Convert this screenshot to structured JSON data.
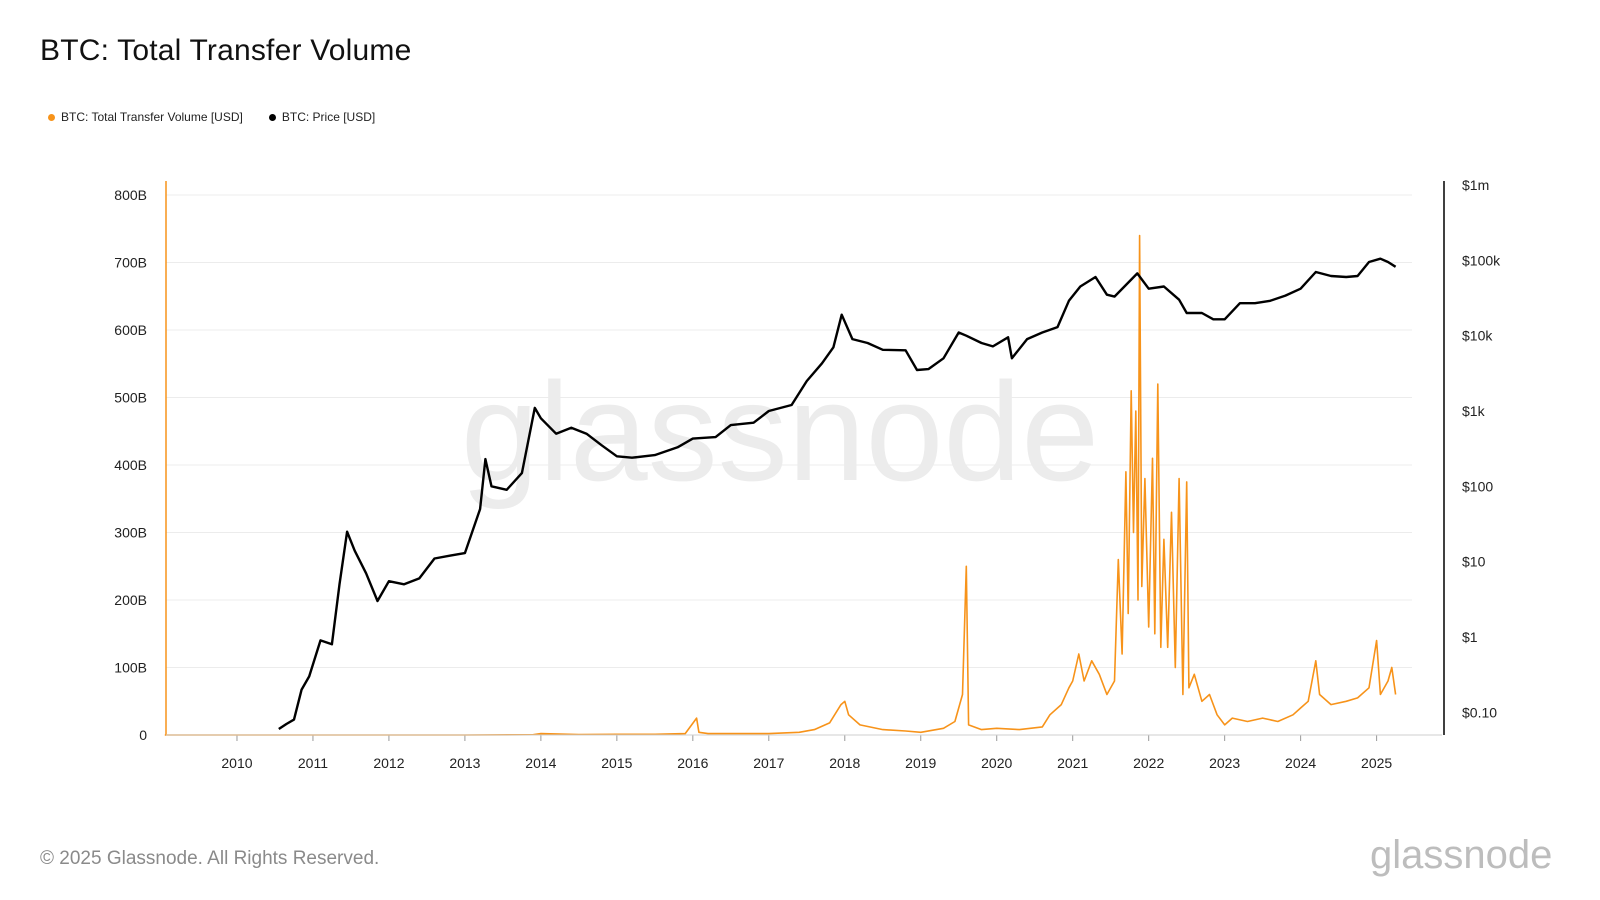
{
  "page_title": "BTC: Total Transfer Volume",
  "legend": [
    {
      "label": "BTC: Total Transfer Volume [USD]",
      "color": "#f7931a"
    },
    {
      "label": "BTC: Price [USD]",
      "color": "#000000"
    }
  ],
  "footer": "© 2025 Glassnode. All Rights Reserved.",
  "watermark": "glassnode",
  "chart_data": {
    "type": "line",
    "title": "BTC: Total Transfer Volume",
    "xlabel": "",
    "ylabel": "",
    "x_ticks": [
      "2010",
      "2011",
      "2012",
      "2013",
      "2014",
      "2015",
      "2016",
      "2017",
      "2018",
      "2019",
      "2020",
      "2021",
      "2022",
      "2023",
      "2024",
      "2025"
    ],
    "y_left_ticks": [
      "0",
      "100B",
      "200B",
      "300B",
      "400B",
      "500B",
      "600B",
      "700B",
      "800B"
    ],
    "y_right_ticks": [
      "$0.10",
      "$1",
      "$10",
      "$100",
      "$1k",
      "$10k",
      "$100k",
      "$1m"
    ],
    "ylim_left": [
      0,
      800000000000
    ],
    "ylim_right": [
      0.05,
      1000000
    ],
    "right_scale": "log",
    "grid": true,
    "legend_position": "top-left",
    "series": [
      {
        "name": "BTC: Total Transfer Volume [USD]",
        "color": "#f7931a",
        "axis": "left",
        "unit": "B USD",
        "points": [
          [
            2009.05,
            0
          ],
          [
            2010.0,
            0
          ],
          [
            2011.0,
            0
          ],
          [
            2012.0,
            0
          ],
          [
            2013.0,
            0
          ],
          [
            2013.9,
            0.5
          ],
          [
            2014.0,
            2
          ],
          [
            2014.5,
            0.8
          ],
          [
            2015.0,
            1
          ],
          [
            2015.5,
            1
          ],
          [
            2015.9,
            2
          ],
          [
            2016.05,
            25
          ],
          [
            2016.08,
            4
          ],
          [
            2016.2,
            2
          ],
          [
            2016.5,
            2
          ],
          [
            2017.0,
            2
          ],
          [
            2017.4,
            4
          ],
          [
            2017.6,
            8
          ],
          [
            2017.8,
            18
          ],
          [
            2017.95,
            45
          ],
          [
            2018.0,
            50
          ],
          [
            2018.05,
            30
          ],
          [
            2018.2,
            15
          ],
          [
            2018.5,
            8
          ],
          [
            2018.8,
            6
          ],
          [
            2019.0,
            4
          ],
          [
            2019.3,
            10
          ],
          [
            2019.45,
            20
          ],
          [
            2019.55,
            60
          ],
          [
            2019.6,
            250
          ],
          [
            2019.63,
            15
          ],
          [
            2019.8,
            8
          ],
          [
            2020.0,
            10
          ],
          [
            2020.3,
            8
          ],
          [
            2020.6,
            12
          ],
          [
            2020.7,
            30
          ],
          [
            2020.85,
            45
          ],
          [
            2020.95,
            70
          ],
          [
            2021.0,
            80
          ],
          [
            2021.08,
            120
          ],
          [
            2021.15,
            80
          ],
          [
            2021.25,
            110
          ],
          [
            2021.35,
            90
          ],
          [
            2021.45,
            60
          ],
          [
            2021.55,
            80
          ],
          [
            2021.6,
            260
          ],
          [
            2021.65,
            120
          ],
          [
            2021.7,
            390
          ],
          [
            2021.73,
            180
          ],
          [
            2021.77,
            510
          ],
          [
            2021.8,
            300
          ],
          [
            2021.83,
            480
          ],
          [
            2021.86,
            200
          ],
          [
            2021.88,
            740
          ],
          [
            2021.91,
            220
          ],
          [
            2021.95,
            380
          ],
          [
            2022.0,
            160
          ],
          [
            2022.05,
            410
          ],
          [
            2022.08,
            150
          ],
          [
            2022.12,
            520
          ],
          [
            2022.16,
            130
          ],
          [
            2022.2,
            290
          ],
          [
            2022.25,
            130
          ],
          [
            2022.3,
            330
          ],
          [
            2022.35,
            100
          ],
          [
            2022.4,
            380
          ],
          [
            2022.45,
            60
          ],
          [
            2022.5,
            375
          ],
          [
            2022.53,
            70
          ],
          [
            2022.6,
            90
          ],
          [
            2022.7,
            50
          ],
          [
            2022.8,
            60
          ],
          [
            2022.9,
            30
          ],
          [
            2023.0,
            15
          ],
          [
            2023.1,
            25
          ],
          [
            2023.3,
            20
          ],
          [
            2023.5,
            25
          ],
          [
            2023.7,
            20
          ],
          [
            2023.9,
            30
          ],
          [
            2024.0,
            40
          ],
          [
            2024.1,
            50
          ],
          [
            2024.2,
            110
          ],
          [
            2024.25,
            60
          ],
          [
            2024.4,
            45
          ],
          [
            2024.6,
            50
          ],
          [
            2024.75,
            55
          ],
          [
            2024.9,
            70
          ],
          [
            2025.0,
            140
          ],
          [
            2025.05,
            60
          ],
          [
            2025.15,
            80
          ],
          [
            2025.2,
            100
          ],
          [
            2025.25,
            60
          ]
        ]
      },
      {
        "name": "BTC: Price [USD]",
        "color": "#000000",
        "axis": "right",
        "unit": "USD",
        "points": [
          [
            2010.55,
            0.06
          ],
          [
            2010.65,
            0.07
          ],
          [
            2010.75,
            0.08
          ],
          [
            2010.85,
            0.2
          ],
          [
            2010.95,
            0.3
          ],
          [
            2011.1,
            0.9
          ],
          [
            2011.25,
            0.8
          ],
          [
            2011.35,
            5
          ],
          [
            2011.45,
            25
          ],
          [
            2011.55,
            14
          ],
          [
            2011.7,
            7
          ],
          [
            2011.85,
            3
          ],
          [
            2012.0,
            5.5
          ],
          [
            2012.2,
            5
          ],
          [
            2012.4,
            6
          ],
          [
            2012.6,
            11
          ],
          [
            2012.8,
            12
          ],
          [
            2013.0,
            13
          ],
          [
            2013.2,
            50
          ],
          [
            2013.27,
            230
          ],
          [
            2013.35,
            100
          ],
          [
            2013.55,
            90
          ],
          [
            2013.75,
            150
          ],
          [
            2013.92,
            1100
          ],
          [
            2014.0,
            800
          ],
          [
            2014.2,
            500
          ],
          [
            2014.4,
            600
          ],
          [
            2014.6,
            500
          ],
          [
            2014.8,
            350
          ],
          [
            2015.0,
            250
          ],
          [
            2015.2,
            240
          ],
          [
            2015.5,
            260
          ],
          [
            2015.8,
            330
          ],
          [
            2016.0,
            430
          ],
          [
            2016.3,
            450
          ],
          [
            2016.5,
            650
          ],
          [
            2016.8,
            700
          ],
          [
            2017.0,
            1000
          ],
          [
            2017.3,
            1200
          ],
          [
            2017.5,
            2500
          ],
          [
            2017.7,
            4300
          ],
          [
            2017.85,
            7000
          ],
          [
            2017.96,
            19000
          ],
          [
            2018.1,
            9000
          ],
          [
            2018.3,
            8000
          ],
          [
            2018.5,
            6500
          ],
          [
            2018.8,
            6400
          ],
          [
            2018.95,
            3500
          ],
          [
            2019.1,
            3600
          ],
          [
            2019.3,
            5000
          ],
          [
            2019.5,
            11000
          ],
          [
            2019.6,
            10000
          ],
          [
            2019.8,
            8000
          ],
          [
            2019.95,
            7200
          ],
          [
            2020.15,
            9500
          ],
          [
            2020.2,
            5000
          ],
          [
            2020.4,
            9000
          ],
          [
            2020.6,
            11000
          ],
          [
            2020.8,
            13000
          ],
          [
            2020.95,
            29000
          ],
          [
            2021.1,
            45000
          ],
          [
            2021.3,
            60000
          ],
          [
            2021.45,
            35000
          ],
          [
            2021.55,
            33000
          ],
          [
            2021.7,
            47000
          ],
          [
            2021.85,
            67000
          ],
          [
            2022.0,
            42000
          ],
          [
            2022.2,
            45000
          ],
          [
            2022.4,
            30000
          ],
          [
            2022.5,
            20000
          ],
          [
            2022.7,
            20000
          ],
          [
            2022.85,
            16500
          ],
          [
            2023.0,
            16500
          ],
          [
            2023.2,
            27000
          ],
          [
            2023.4,
            27000
          ],
          [
            2023.6,
            29000
          ],
          [
            2023.8,
            34000
          ],
          [
            2024.0,
            42000
          ],
          [
            2024.2,
            70000
          ],
          [
            2024.4,
            62000
          ],
          [
            2024.6,
            60000
          ],
          [
            2024.75,
            62000
          ],
          [
            2024.9,
            95000
          ],
          [
            2025.05,
            105000
          ],
          [
            2025.15,
            95000
          ],
          [
            2025.25,
            82000
          ]
        ]
      }
    ]
  }
}
